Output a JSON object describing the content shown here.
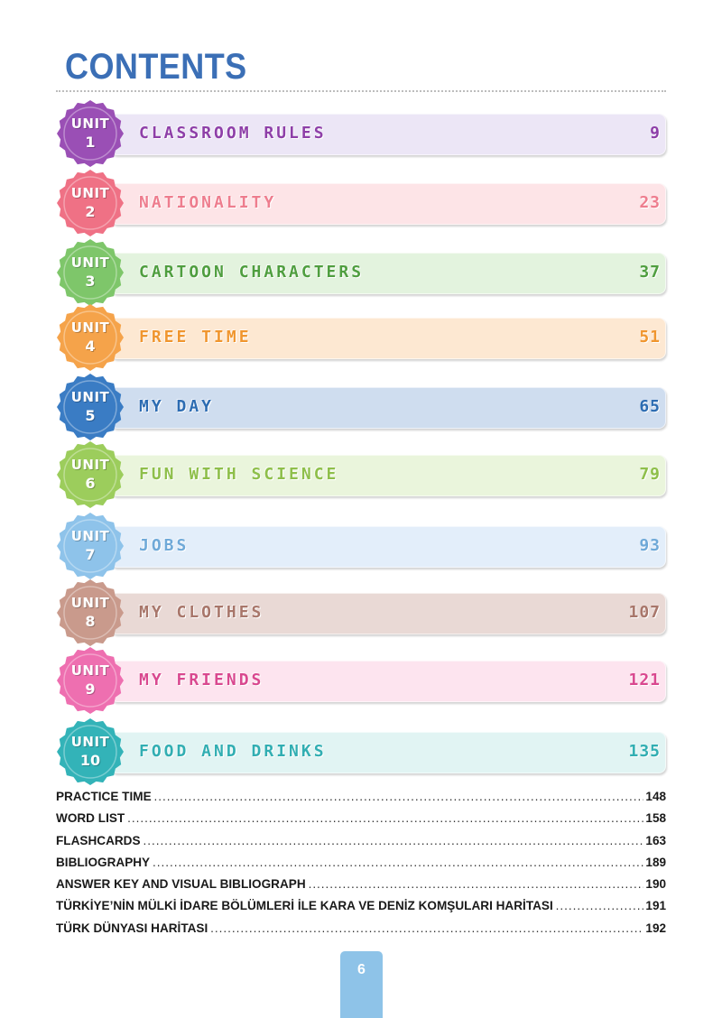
{
  "header": {
    "title": "CONTENTS"
  },
  "units": [
    {
      "word": "UNIT",
      "number": "1",
      "title": "CLASSROOM RULES",
      "page": "9",
      "color": "#9a4fb5",
      "bar": "#ece6f6",
      "text": "#8e3fa8"
    },
    {
      "word": "UNIT",
      "number": "2",
      "title": "NATIONALITY",
      "page": "23",
      "color": "#ef7185",
      "bar": "#fde4e7",
      "text": "#ee7d8e"
    },
    {
      "word": "UNIT",
      "number": "3",
      "title": "CARTOON CHARACTERS",
      "page": "37",
      "color": "#7ec66a",
      "bar": "#e3f3de",
      "text": "#4f9e3f"
    },
    {
      "word": "UNIT",
      "number": "4",
      "title": "FREE TIME",
      "page": "51",
      "color": "#f5a34a",
      "bar": "#fde8d2",
      "text": "#f0962f"
    },
    {
      "word": "UNIT",
      "number": "5",
      "title": "MY DAY",
      "page": "65",
      "color": "#3a7cc4",
      "bar": "#cfddef",
      "text": "#2c6cb2"
    },
    {
      "word": "UNIT",
      "number": "6",
      "title": "FUN WITH SCIENCE",
      "page": "79",
      "color": "#9ccd5c",
      "bar": "#eaf5dc",
      "text": "#8ebf4a"
    },
    {
      "word": "UNIT",
      "number": "7",
      "title": "JOBS",
      "page": "93",
      "color": "#8ec3ea",
      "bar": "#e3eefa",
      "text": "#6fa9d8"
    },
    {
      "word": "UNIT",
      "number": "8",
      "title": "MY CLOTHES",
      "page": "107",
      "color": "#c99a8c",
      "bar": "#e9d9d5",
      "text": "#a8766a"
    },
    {
      "word": "UNIT",
      "number": "9",
      "title": "MY FRIENDS",
      "page": "121",
      "color": "#ee6fb0",
      "bar": "#fde4ef",
      "text": "#d9488f"
    },
    {
      "word": "UNIT",
      "number": "10",
      "title": "FOOD AND DRINKS",
      "page": "135",
      "color": "#33b3b8",
      "bar": "#e1f4f3",
      "text": "#31aeb2"
    }
  ],
  "extras": [
    {
      "label": "PRACTICE TIME",
      "page": "148"
    },
    {
      "label": "WORD LIST",
      "page": "158"
    },
    {
      "label": "FLASHCARDS",
      "page": "163"
    },
    {
      "label": "BIBLIOGRAPHY",
      "page": "189"
    },
    {
      "label": "ANSWER KEY AND VISUAL BIBLIOGRAPH",
      "page": "190"
    },
    {
      "label": "TÜRKİYE’NİN MÜLKİ İDARE BÖLÜMLERİ İLE KARA VE DENİZ KOMŞULARI HARİTASI",
      "page": "191"
    },
    {
      "label": "TÜRK DÜNYASI HARİTASI",
      "page": "192"
    }
  ],
  "footer": {
    "page_number": "6",
    "tab_color": "#8ec3e8"
  }
}
